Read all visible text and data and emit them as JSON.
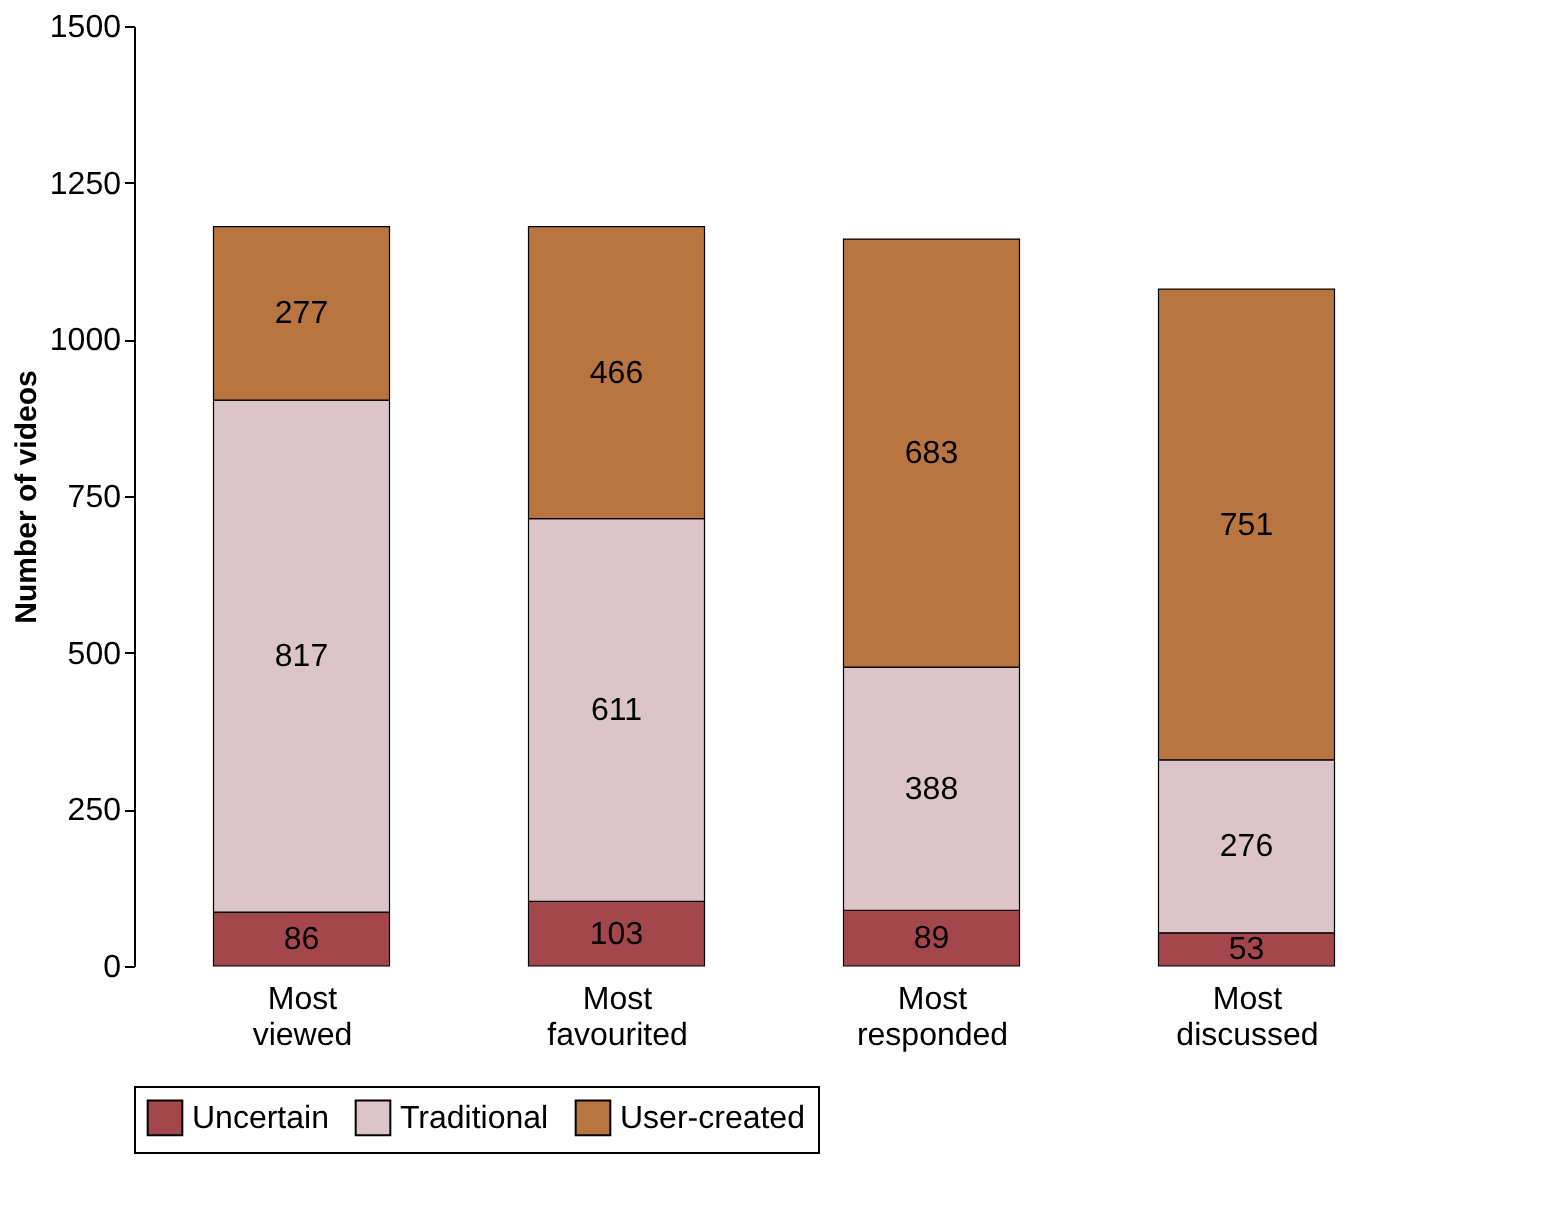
{
  "chart_data": {
    "type": "bar",
    "stacked": true,
    "ylabel": "Number of videos",
    "categories": [
      "Most viewed",
      "Most favourited",
      "Most responded",
      "Most discussed"
    ],
    "series": [
      {
        "name": "Uncertain",
        "color": "#a3474c",
        "values": [
          86,
          103,
          89,
          53
        ]
      },
      {
        "name": "Traditional",
        "color": "#dcc5c8",
        "values": [
          817,
          611,
          388,
          276
        ]
      },
      {
        "name": "User-created",
        "color": "#b97540",
        "values": [
          277,
          466,
          683,
          751
        ]
      }
    ],
    "ylim": [
      0,
      1500
    ],
    "yticks": [
      0,
      250,
      500,
      750,
      1000,
      1250,
      1500
    ],
    "data_labels": true,
    "legend": "bottom",
    "grid": false
  }
}
